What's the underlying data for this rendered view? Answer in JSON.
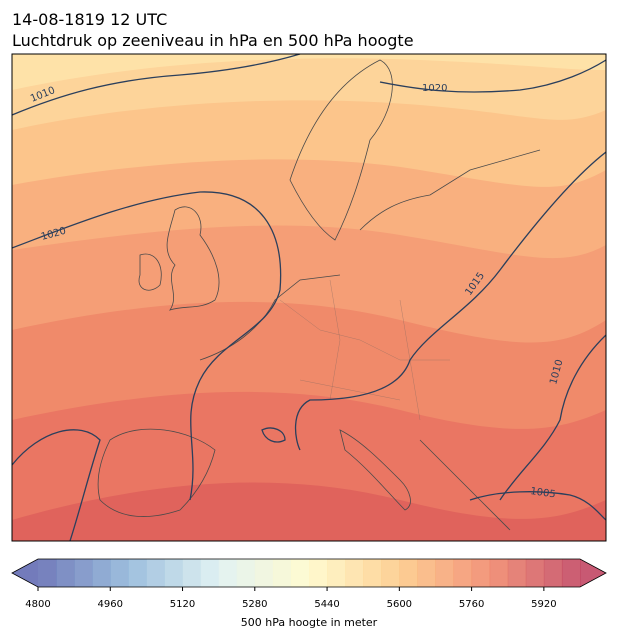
{
  "header": {
    "title": "14-08-1819 12 UTC",
    "subtitle": "Luchtdruk op zeeniveau in hPa en 500 hPa hoogte"
  },
  "map": {
    "contour_labels": [
      "1010",
      "1020",
      "1020",
      "1015",
      "1010",
      "1005"
    ]
  },
  "colorbar": {
    "label": "500 hPa hoogte in meter",
    "lim": [
      4800,
      6000
    ],
    "ticks": [
      4800,
      4960,
      5120,
      5280,
      5440,
      5600,
      5760,
      5920
    ]
  }
}
